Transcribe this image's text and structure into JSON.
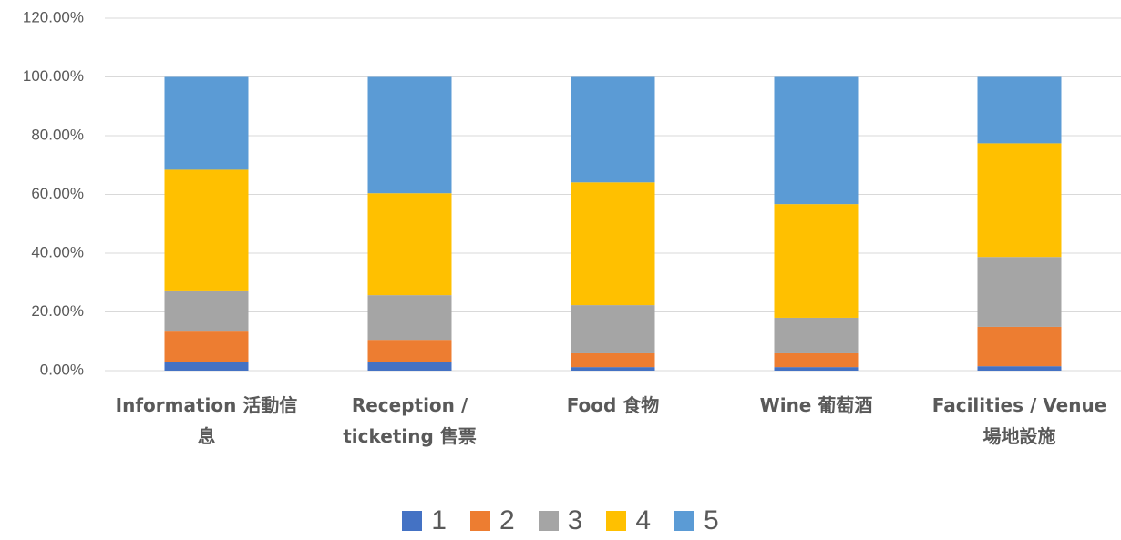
{
  "chart_data": {
    "type": "stacked_bar",
    "categories": [
      "Information 活動信息",
      "Reception / ticketing 售票",
      "Food 食物",
      "Wine 葡萄酒",
      "Facilities / Venue 場地設施"
    ],
    "series": [
      {
        "name": "1",
        "color": "#4472c4",
        "values": [
          3,
          3,
          1.2,
          1.2,
          1.5
        ]
      },
      {
        "name": "2",
        "color": "#ed7d31",
        "values": [
          10.3,
          7.5,
          4.7,
          4.7,
          13.4
        ]
      },
      {
        "name": "3",
        "color": "#a5a5a5",
        "values": [
          13.7,
          15.2,
          16.4,
          12.1,
          23.8
        ]
      },
      {
        "name": "4",
        "color": "#ffc000",
        "values": [
          41.4,
          34.7,
          41.8,
          38.7,
          38.7
        ]
      },
      {
        "name": "5",
        "color": "#5b9bd5",
        "values": [
          31.6,
          39.6,
          35.9,
          43.3,
          22.6
        ]
      }
    ],
    "ylim": [
      0,
      120
    ],
    "yticks": [
      {
        "value": 0,
        "label": "0.00%"
      },
      {
        "value": 20,
        "label": "20.00%"
      },
      {
        "value": 40,
        "label": "40.00%"
      },
      {
        "value": 60,
        "label": "60.00%"
      },
      {
        "value": 80,
        "label": "80.00%"
      },
      {
        "value": 100,
        "label": "100.00%"
      },
      {
        "value": 120,
        "label": "120.00%"
      }
    ],
    "grid": true
  }
}
